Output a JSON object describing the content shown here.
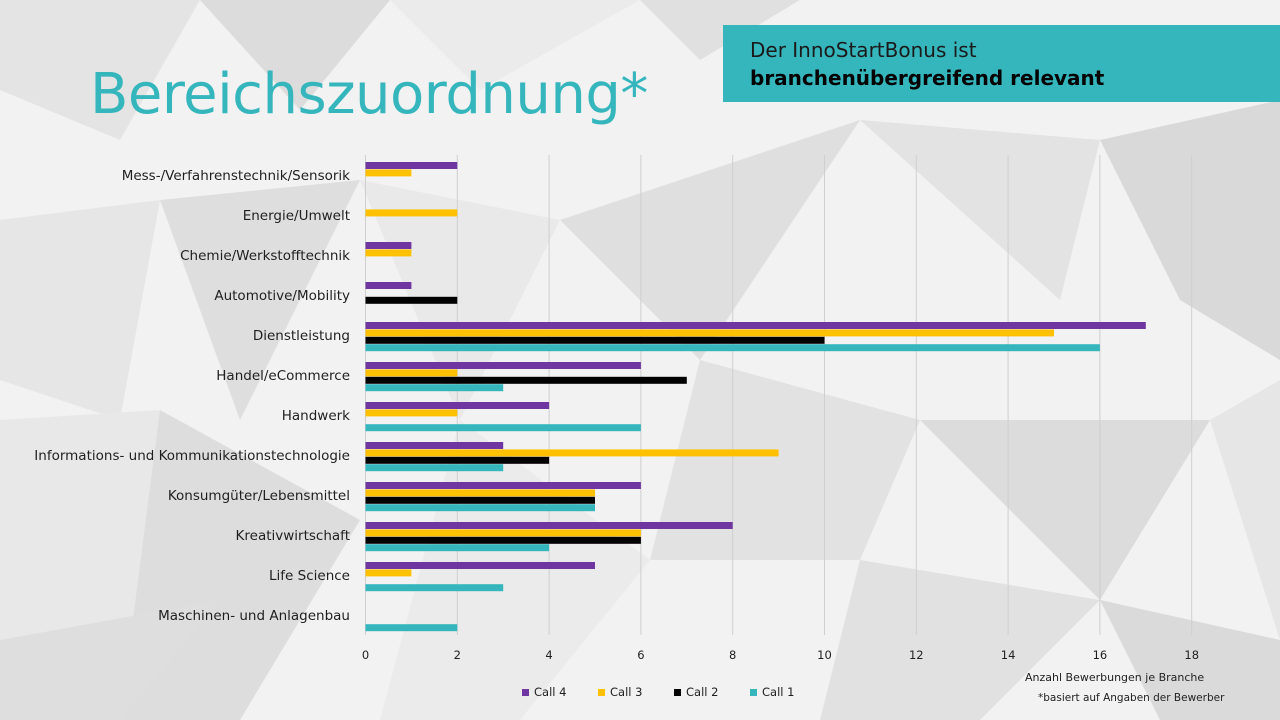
{
  "title": "Bereichszuordnung*",
  "callout": {
    "line1": "Der InnoStartBonus ist",
    "line2": "branchenübergreifend relevant"
  },
  "footnote": "*basiert auf Angaben der Bewerber",
  "colors": {
    "accent": "#35b6bd",
    "call4": "#6f35a0",
    "call3": "#ffc000",
    "call2": "#000000",
    "call1": "#35b6bd"
  },
  "chart_data": {
    "type": "bar",
    "orientation": "horizontal",
    "xlabel": "Anzahl Bewerbungen je Branche",
    "xlim": [
      0,
      18
    ],
    "xticks": [
      0,
      2,
      4,
      6,
      8,
      10,
      12,
      14,
      16,
      18
    ],
    "grid": true,
    "legend_position": "bottom",
    "categories": [
      "Mess-/Verfahrenstechnik/Sensorik",
      "Energie/Umwelt",
      "Chemie/Werkstofftechnik",
      "Automotive/Mobility",
      "Dienstleistung",
      "Handel/eCommerce",
      "Handwerk",
      "Informations- und Kommunikationstechnologie",
      "Konsumgüter/Lebensmittel",
      "Kreativwirtschaft",
      "Life Science",
      "Maschinen- und Anlagenbau"
    ],
    "series": [
      {
        "name": "Call 4",
        "color": "#6f35a0",
        "values": [
          2,
          0,
          1,
          1,
          17,
          6,
          4,
          3,
          6,
          8,
          5,
          0
        ]
      },
      {
        "name": "Call 3",
        "color": "#ffc000",
        "values": [
          1,
          2,
          1,
          0,
          15,
          2,
          2,
          9,
          5,
          6,
          1,
          0
        ]
      },
      {
        "name": "Call 2",
        "color": "#000000",
        "values": [
          0,
          0,
          0,
          2,
          10,
          7,
          0,
          4,
          5,
          6,
          0,
          0
        ]
      },
      {
        "name": "Call 1",
        "color": "#35b6bd",
        "values": [
          0,
          0,
          0,
          0,
          16,
          3,
          6,
          3,
          5,
          4,
          3,
          2
        ]
      }
    ]
  }
}
